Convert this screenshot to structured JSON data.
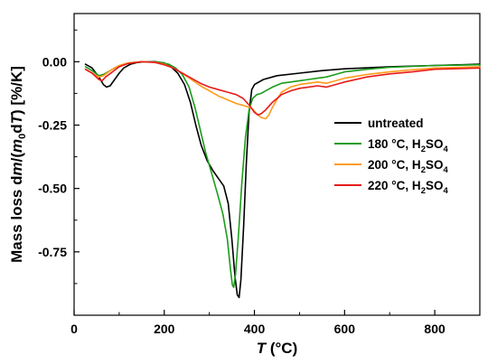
{
  "chart_data": {
    "type": "line",
    "xlabel": {
      "var": "T",
      "unit": " (°C)"
    },
    "ylabel": {
      "pre": "Mass loss d",
      "m": "m",
      "mid": "/(",
      "m0": "m",
      "sub0": "0",
      "d": "d",
      "T": "T",
      "post": ") [%/K]"
    },
    "xlim": [
      0,
      900
    ],
    "ylim": [
      -1.0,
      0.19
    ],
    "xticks": [
      0,
      200,
      400,
      600,
      800
    ],
    "xtick_labels": [
      "0",
      "200",
      "400",
      "600",
      "800"
    ],
    "yticks": [
      0.0,
      -0.25,
      -0.5,
      -0.75
    ],
    "ytick_labels": [
      "0.00",
      "-0.25",
      "-0.50",
      "-0.75"
    ],
    "grid": false,
    "legend_position": "right",
    "series": [
      {
        "name": "untreated",
        "legend": {
          "main": "untreated",
          "sub1": "",
          "mid": "",
          "sub2": ""
        },
        "color": "#000000",
        "points": [
          [
            25,
            -0.01
          ],
          [
            40,
            -0.025
          ],
          [
            55,
            -0.06
          ],
          [
            65,
            -0.09
          ],
          [
            72,
            -0.1
          ],
          [
            80,
            -0.095
          ],
          [
            90,
            -0.07
          ],
          [
            100,
            -0.045
          ],
          [
            110,
            -0.025
          ],
          [
            125,
            -0.01
          ],
          [
            140,
            -0.003
          ],
          [
            160,
            0.0
          ],
          [
            180,
            0.0
          ],
          [
            200,
            -0.005
          ],
          [
            215,
            -0.02
          ],
          [
            230,
            -0.045
          ],
          [
            245,
            -0.09
          ],
          [
            258,
            -0.16
          ],
          [
            270,
            -0.25
          ],
          [
            282,
            -0.33
          ],
          [
            295,
            -0.39
          ],
          [
            308,
            -0.43
          ],
          [
            320,
            -0.46
          ],
          [
            332,
            -0.49
          ],
          [
            342,
            -0.56
          ],
          [
            350,
            -0.7
          ],
          [
            357,
            -0.85
          ],
          [
            362,
            -0.92
          ],
          [
            366,
            -0.93
          ],
          [
            370,
            -0.86
          ],
          [
            376,
            -0.65
          ],
          [
            382,
            -0.4
          ],
          [
            388,
            -0.2
          ],
          [
            394,
            -0.11
          ],
          [
            400,
            -0.09
          ],
          [
            420,
            -0.07
          ],
          [
            450,
            -0.055
          ],
          [
            500,
            -0.045
          ],
          [
            550,
            -0.035
          ],
          [
            600,
            -0.028
          ],
          [
            700,
            -0.02
          ],
          [
            800,
            -0.015
          ],
          [
            900,
            -0.01
          ]
        ]
      },
      {
        "name": "180 °C, H2SO4",
        "legend": {
          "main": "180 °C, H",
          "sub1": "2",
          "mid": "SO",
          "sub2": "4"
        },
        "color": "#1a9c1a",
        "points": [
          [
            25,
            -0.02
          ],
          [
            40,
            -0.035
          ],
          [
            55,
            -0.055
          ],
          [
            65,
            -0.05
          ],
          [
            80,
            -0.035
          ],
          [
            95,
            -0.02
          ],
          [
            110,
            -0.01
          ],
          [
            130,
            -0.003
          ],
          [
            160,
            0.0
          ],
          [
            190,
            -0.002
          ],
          [
            210,
            -0.01
          ],
          [
            225,
            -0.025
          ],
          [
            240,
            -0.05
          ],
          [
            255,
            -0.1
          ],
          [
            268,
            -0.18
          ],
          [
            280,
            -0.27
          ],
          [
            292,
            -0.36
          ],
          [
            305,
            -0.44
          ],
          [
            318,
            -0.52
          ],
          [
            330,
            -0.6
          ],
          [
            340,
            -0.7
          ],
          [
            347,
            -0.82
          ],
          [
            351,
            -0.88
          ],
          [
            354,
            -0.89
          ],
          [
            358,
            -0.84
          ],
          [
            364,
            -0.7
          ],
          [
            372,
            -0.48
          ],
          [
            380,
            -0.3
          ],
          [
            388,
            -0.19
          ],
          [
            396,
            -0.145
          ],
          [
            405,
            -0.13
          ],
          [
            415,
            -0.125
          ],
          [
            425,
            -0.115
          ],
          [
            440,
            -0.1
          ],
          [
            460,
            -0.085
          ],
          [
            480,
            -0.08
          ],
          [
            500,
            -0.075
          ],
          [
            520,
            -0.07
          ],
          [
            540,
            -0.065
          ],
          [
            560,
            -0.06
          ],
          [
            580,
            -0.05
          ],
          [
            600,
            -0.04
          ],
          [
            650,
            -0.03
          ],
          [
            700,
            -0.022
          ],
          [
            800,
            -0.015
          ],
          [
            900,
            -0.012
          ]
        ]
      },
      {
        "name": "200 °C, H2SO4",
        "legend": {
          "main": "200 °C, H",
          "sub1": "2",
          "mid": "SO",
          "sub2": "4"
        },
        "color": "#ff9a1a",
        "points": [
          [
            25,
            -0.03
          ],
          [
            40,
            -0.045
          ],
          [
            55,
            -0.06
          ],
          [
            65,
            -0.055
          ],
          [
            80,
            -0.035
          ],
          [
            100,
            -0.015
          ],
          [
            120,
            -0.005
          ],
          [
            150,
            0.0
          ],
          [
            180,
            -0.002
          ],
          [
            200,
            -0.01
          ],
          [
            220,
            -0.025
          ],
          [
            240,
            -0.045
          ],
          [
            260,
            -0.07
          ],
          [
            280,
            -0.095
          ],
          [
            300,
            -0.115
          ],
          [
            320,
            -0.135
          ],
          [
            340,
            -0.15
          ],
          [
            360,
            -0.165
          ],
          [
            380,
            -0.175
          ],
          [
            395,
            -0.185
          ],
          [
            405,
            -0.205
          ],
          [
            415,
            -0.22
          ],
          [
            425,
            -0.225
          ],
          [
            432,
            -0.21
          ],
          [
            440,
            -0.18
          ],
          [
            450,
            -0.15
          ],
          [
            460,
            -0.12
          ],
          [
            480,
            -0.1
          ],
          [
            500,
            -0.09
          ],
          [
            520,
            -0.085
          ],
          [
            540,
            -0.08
          ],
          [
            560,
            -0.085
          ],
          [
            580,
            -0.075
          ],
          [
            600,
            -0.065
          ],
          [
            650,
            -0.05
          ],
          [
            700,
            -0.04
          ],
          [
            750,
            -0.032
          ],
          [
            800,
            -0.025
          ],
          [
            900,
            -0.02
          ]
        ]
      },
      {
        "name": "220 °C, H2SO4",
        "legend": {
          "main": "220 °C, H",
          "sub1": "2",
          "mid": "SO",
          "sub2": "4"
        },
        "color": "#e81a1a",
        "points": [
          [
            25,
            -0.03
          ],
          [
            40,
            -0.045
          ],
          [
            55,
            -0.07
          ],
          [
            62,
            -0.075
          ],
          [
            70,
            -0.06
          ],
          [
            85,
            -0.04
          ],
          [
            100,
            -0.02
          ],
          [
            120,
            -0.007
          ],
          [
            150,
            0.0
          ],
          [
            180,
            -0.003
          ],
          [
            200,
            -0.012
          ],
          [
            220,
            -0.025
          ],
          [
            240,
            -0.045
          ],
          [
            260,
            -0.065
          ],
          [
            280,
            -0.085
          ],
          [
            300,
            -0.1
          ],
          [
            320,
            -0.11
          ],
          [
            340,
            -0.12
          ],
          [
            360,
            -0.13
          ],
          [
            375,
            -0.145
          ],
          [
            390,
            -0.175
          ],
          [
            400,
            -0.2
          ],
          [
            408,
            -0.21
          ],
          [
            415,
            -0.205
          ],
          [
            425,
            -0.19
          ],
          [
            440,
            -0.16
          ],
          [
            460,
            -0.13
          ],
          [
            480,
            -0.115
          ],
          [
            500,
            -0.105
          ],
          [
            520,
            -0.1
          ],
          [
            540,
            -0.095
          ],
          [
            560,
            -0.1
          ],
          [
            580,
            -0.09
          ],
          [
            600,
            -0.08
          ],
          [
            650,
            -0.06
          ],
          [
            700,
            -0.048
          ],
          [
            750,
            -0.04
          ],
          [
            800,
            -0.03
          ],
          [
            900,
            -0.025
          ]
        ]
      }
    ]
  }
}
